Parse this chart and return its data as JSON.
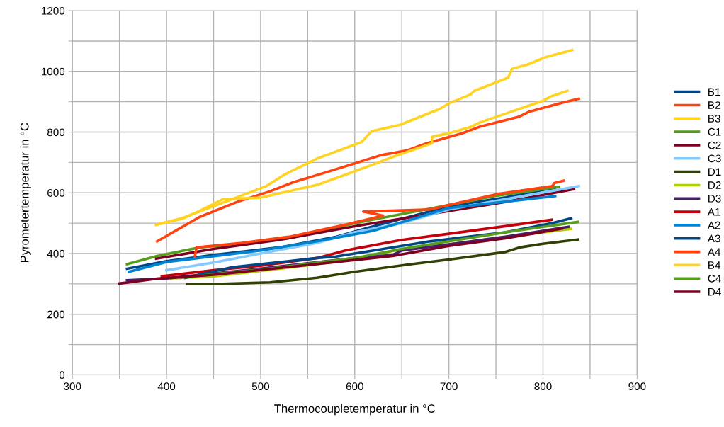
{
  "chart_data": {
    "type": "line",
    "xlabel": "Thermocoupletemperatur in °C",
    "ylabel": "Pyrometertemperatur in °C",
    "xlim": [
      300,
      900
    ],
    "ylim": [
      0,
      1200
    ],
    "xticks": [
      300,
      {
        "value": 350,
        "label": null
      },
      400,
      {
        "value": 450,
        "label": null
      },
      500,
      {
        "value": 550,
        "label": null
      },
      600,
      {
        "value": 650,
        "label": null
      },
      700,
      {
        "value": 750,
        "label": null
      },
      800,
      {
        "value": 850,
        "label": null
      },
      900
    ],
    "yticks": [
      0,
      {
        "value": 100,
        "label": null
      },
      200,
      {
        "value": 300,
        "label": null
      },
      400,
      {
        "value": 500,
        "label": null
      },
      600,
      {
        "value": 700,
        "label": null
      },
      800,
      {
        "value": 900,
        "label": null
      },
      1000,
      {
        "value": 1100,
        "label": null
      },
      1200
    ],
    "grid": true,
    "legend": "right",
    "marker": "none",
    "line_style": "solid",
    "series": [
      {
        "name": "B1",
        "color": "#004586",
        "x": [
          358,
          400,
          450,
          520,
          580,
          620,
          700,
          760,
          813
        ],
        "values": [
          350,
          375,
          395,
          420,
          455,
          490,
          555,
          585,
          617
        ]
      },
      {
        "name": "B2",
        "color": "#ff420e",
        "x": [
          390,
          435,
          475,
          510,
          535,
          570,
          628,
          656,
          676,
          714,
          734,
          774,
          785,
          822,
          838
        ],
        "values": [
          440,
          520,
          570,
          605,
          635,
          668,
          724,
          740,
          763,
          796,
          819,
          850,
          867,
          898,
          910
        ]
      },
      {
        "name": "B3",
        "color": "#ffd320",
        "x": [
          389,
          417,
          506,
          527,
          561,
          607,
          618,
          648,
          690,
          701,
          723,
          727,
          763,
          767,
          785,
          802,
          831
        ],
        "values": [
          495,
          517,
          622,
          663,
          714,
          767,
          803,
          824,
          876,
          896,
          924,
          936,
          979,
          1008,
          1024,
          1046,
          1070
        ]
      },
      {
        "name": "C1",
        "color": "#579d1c",
        "x": [
          358,
          390,
          435,
          480,
          530,
          600,
          650,
          700,
          750,
          817
        ],
        "values": [
          365,
          392,
          420,
          432,
          450,
          500,
          530,
          560,
          590,
          620
        ]
      },
      {
        "name": "C2",
        "color": "#7e0021",
        "x": [
          389,
          450,
          520,
          600,
          700,
          760,
          833
        ],
        "values": [
          383,
          415,
          445,
          490,
          540,
          570,
          612
        ]
      },
      {
        "name": "C3",
        "color": "#83caff",
        "x": [
          400,
          450,
          500,
          560,
          600,
          650,
          700,
          780,
          838
        ],
        "values": [
          345,
          370,
          400,
          435,
          470,
          500,
          545,
          590,
          622
        ]
      },
      {
        "name": "D1",
        "color": "#314004",
        "x": [
          422,
          460,
          510,
          560,
          600,
          660,
          700,
          760,
          775,
          800,
          837
        ],
        "values": [
          300,
          300,
          305,
          320,
          340,
          365,
          380,
          405,
          420,
          432,
          446
        ]
      },
      {
        "name": "D2",
        "color": "#aecf00",
        "x": [
          405,
          450,
          520,
          600,
          650,
          700,
          760,
          830
        ],
        "values": [
          318,
          325,
          350,
          380,
          415,
          430,
          455,
          481
        ]
      },
      {
        "name": "D3",
        "color": "#4b1f6f",
        "x": [
          358,
          400,
          500,
          600,
          640,
          650,
          700,
          760,
          827
        ],
        "values": [
          312,
          318,
          350,
          385,
          395,
          410,
          430,
          455,
          488
        ]
      },
      {
        "name": "A1",
        "color": "#c5000b",
        "x": [
          395,
          450,
          500,
          560,
          590,
          650,
          700,
          760,
          809
        ],
        "values": [
          325,
          345,
          360,
          385,
          410,
          445,
          465,
          490,
          511
        ]
      },
      {
        "name": "A2",
        "color": "#0084d1",
        "x": [
          360,
          400,
          500,
          560,
          620,
          700,
          813
        ],
        "values": [
          340,
          372,
          410,
          440,
          475,
          550,
          589
        ]
      },
      {
        "name": "A3",
        "color": "#004586",
        "x": [
          420,
          470,
          530,
          560,
          580,
          620,
          680,
          760,
          810,
          830
        ],
        "values": [
          320,
          355,
          375,
          385,
          390,
          410,
          440,
          470,
          500,
          516
        ]
      },
      {
        "name": "A4",
        "color": "#ff420e",
        "x": [
          430,
          432,
          480,
          530,
          590,
          630,
          609,
          680,
          700,
          750,
          810,
          812,
          822
        ],
        "values": [
          390,
          420,
          435,
          455,
          495,
          525,
          538,
          545,
          560,
          595,
          622,
          632,
          640
        ]
      },
      {
        "name": "B4",
        "color": "#ffd320",
        "x": [
          389,
          417,
          435,
          460,
          500,
          561,
          586,
          622,
          641,
          682,
          682,
          702,
          723,
          734,
          767,
          782,
          800,
          808,
          826
        ],
        "values": [
          495,
          515,
          540,
          579,
          584,
          627,
          655,
          696,
          719,
          763,
          784,
          798,
          817,
          833,
          868,
          884,
          903,
          917,
          936
        ]
      },
      {
        "name": "C4",
        "color": "#579d1c",
        "x": [
          415,
          460,
          510,
          600,
          650,
          700,
          760,
          837
        ],
        "values": [
          320,
          335,
          350,
          385,
          415,
          440,
          470,
          504
        ]
      },
      {
        "name": "D4",
        "color": "#7e0021",
        "x": [
          350,
          390,
          450,
          550,
          640,
          700,
          760,
          820
        ],
        "values": [
          301,
          317,
          330,
          362,
          392,
          425,
          450,
          482
        ]
      }
    ]
  }
}
